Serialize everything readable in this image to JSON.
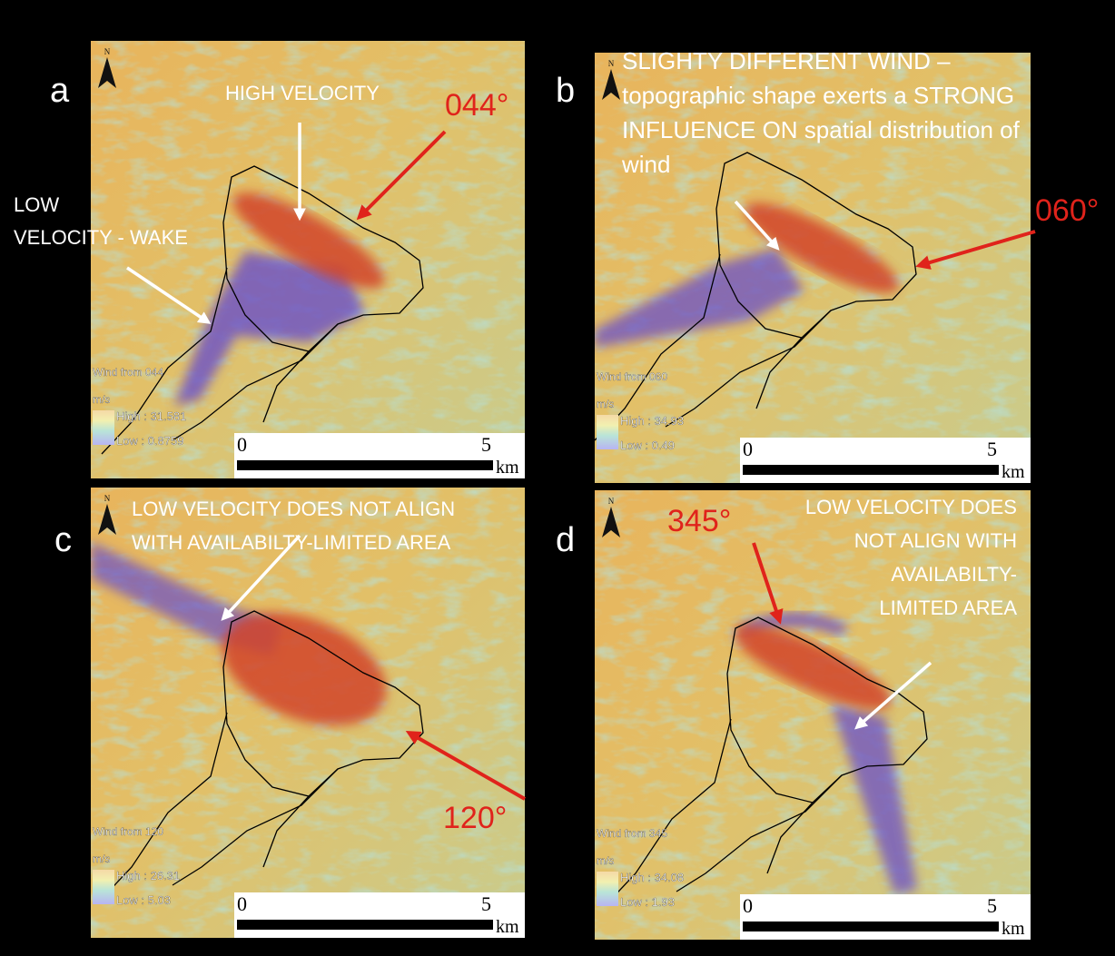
{
  "panels": [
    {
      "letter": "a",
      "direction": "044°",
      "annotations": [
        [
          "HIGH VELOCITY"
        ],
        [
          "LOW",
          "VELOCITY - WAKE"
        ]
      ],
      "legend": {
        "title": "Wind from 044",
        "unit": "m/s",
        "high": "High : 31.581",
        "low": "Low : 0.8759"
      },
      "scale": {
        "start": "0",
        "end": "5",
        "unit": "km"
      },
      "north": "N"
    },
    {
      "letter": "b",
      "direction": "060°",
      "annotations": [
        [
          "SLIGHTY DIFFERENT WIND –",
          "topographic shape exerts a STRONG",
          "INFLUENCE ON spatial distribution of",
          "wind"
        ]
      ],
      "legend": {
        "title": "Wind from 060",
        "unit": "m/s",
        "high": "High : 34.93",
        "low": "Low : 0.49"
      },
      "scale": {
        "start": "0",
        "end": "5",
        "unit": "km"
      },
      "north": "N"
    },
    {
      "letter": "c",
      "direction": "120°",
      "annotations": [
        [
          "LOW VELOCITY DOES NOT ALIGN",
          "WITH AVAILABILTY-LIMITED AREA"
        ]
      ],
      "legend": {
        "title": "Wind from 120",
        "unit": "m/s",
        "high": "High : 26.31",
        "low": "Low : 5.03"
      },
      "scale": {
        "start": "0",
        "end": "5",
        "unit": "km"
      },
      "north": "N"
    },
    {
      "letter": "d",
      "direction": "345°",
      "annotations": [
        [
          "LOW VELOCITY DOES",
          "NOT ALIGN WITH",
          "AVAILABILTY-",
          "LIMITED AREA"
        ]
      ],
      "legend": {
        "title": "Wind from 345",
        "unit": "m/s",
        "high": "High : 34.08",
        "low": "Low : 1.93"
      },
      "scale": {
        "start": "0",
        "end": "5",
        "unit": "km"
      },
      "north": "N"
    }
  ]
}
